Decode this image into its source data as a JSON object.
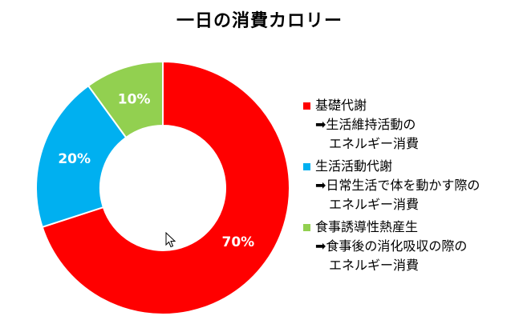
{
  "title": "一日の消費カロリー",
  "chart_data": {
    "type": "pie",
    "style": "donut",
    "title": "一日の消費カロリー",
    "categories": [
      "基礎代謝",
      "生活活動代謝",
      "食事誘導性熱産生"
    ],
    "values": [
      70,
      20,
      10
    ],
    "unit": "%",
    "data_labels": [
      "70%",
      "20%",
      "10%"
    ],
    "colors": [
      "#ff0000",
      "#00b0f0",
      "#92d050"
    ],
    "start_angle_deg": 0,
    "direction": "clockwise",
    "legend_position": "right"
  },
  "legend": {
    "items": [
      {
        "label": "基礎代謝",
        "desc_line1": "➡生活維持活動の",
        "desc_line2": "エネルギー消費",
        "color": "#ff0000"
      },
      {
        "label": "生活活動代謝",
        "desc_line1": "➡日常生活で体を動かす際の",
        "desc_line2": "エネルギー消費",
        "color": "#00b0f0"
      },
      {
        "label": "食事誘導性熱産生",
        "desc_line1": "➡食事後の消化吸収の際の",
        "desc_line2": "エネルギー消費",
        "color": "#92d050"
      }
    ]
  },
  "cursor_icon": "mouse-pointer-icon"
}
